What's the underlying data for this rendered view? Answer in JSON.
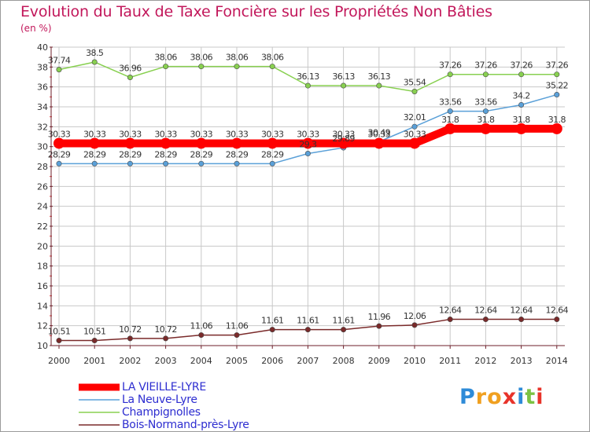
{
  "header": {
    "title": "Evolution du Taux de Taxe Foncière sur les Propriétés Non Bâties",
    "subtitle": "(en %)"
  },
  "logo": {
    "letters": [
      "P",
      "r",
      "o",
      "x",
      "i",
      "t",
      "i"
    ],
    "colors": [
      "#2e8bd8",
      "#f0a020",
      "#f0a020",
      "#e8332a",
      "#2e8bd8",
      "#7cc243",
      "#e8332a"
    ]
  },
  "colors": {
    "title": "#c2185b",
    "legend_text": "#2d2dd0",
    "axis": "#6d1f2a",
    "grid": "#c8c8c8"
  },
  "chart_data": {
    "type": "line",
    "title": "Evolution du Taux de Taxe Foncière sur les Propriétés Non Bâties",
    "ylabel": "(en %)",
    "xlabel": "",
    "x": [
      "2000",
      "2001",
      "2002",
      "2003",
      "2004",
      "2005",
      "2006",
      "2007",
      "2008",
      "2009",
      "2010",
      "2011",
      "2012",
      "2013",
      "2014"
    ],
    "ylim": [
      10,
      40
    ],
    "yticks": [
      "10",
      "12",
      "14",
      "16",
      "18",
      "20",
      "22",
      "24",
      "26",
      "28",
      "30",
      "32",
      "34",
      "36",
      "38",
      "40"
    ],
    "grid": true,
    "legend_position": "bottom-left",
    "series": [
      {
        "name": "LA VIEILLE-LYRE",
        "color": "#ff0000",
        "values": [
          30.33,
          30.33,
          30.33,
          30.33,
          30.33,
          30.33,
          30.33,
          30.33,
          30.33,
          30.33,
          30.33,
          31.8,
          31.8,
          31.8,
          31.8
        ],
        "labels": [
          "30.33",
          "30.33",
          "30.33",
          "30.33",
          "30.33",
          "30.33",
          "30.33",
          "30.33",
          "30.33",
          "30.33",
          "30.33",
          "31.8",
          "31.8",
          "31.8",
          "31.8"
        ]
      },
      {
        "name": "La Neuve-Lyre",
        "color": "#5aa0d8",
        "values": [
          28.29,
          28.29,
          28.29,
          28.29,
          28.29,
          28.29,
          28.29,
          29.3,
          29.89,
          30.49,
          32.01,
          33.56,
          33.56,
          34.2,
          35.22
        ],
        "labels": [
          "28.29",
          "28.29",
          "28.29",
          "28.29",
          "28.29",
          "28.29",
          "28.29",
          "29.3",
          "29.89",
          "30.49",
          "32.01",
          "33.56",
          "33.56",
          "34.2",
          "35.22"
        ]
      },
      {
        "name": "Champignolles",
        "color": "#88d050",
        "values": [
          37.74,
          38.5,
          36.96,
          38.06,
          38.06,
          38.06,
          38.06,
          36.13,
          36.13,
          36.13,
          35.54,
          37.26,
          37.26,
          37.26,
          37.26
        ],
        "labels": [
          "37.74",
          "38.5",
          "36.96",
          "38.06",
          "38.06",
          "38.06",
          "38.06",
          "36.13",
          "36.13",
          "36.13",
          "35.54",
          "37.26",
          "37.26",
          "37.26",
          "37.26"
        ]
      },
      {
        "name": "Bois-Normand-près-Lyre",
        "color": "#7a2a2a",
        "values": [
          10.51,
          10.51,
          10.72,
          10.72,
          11.06,
          11.06,
          11.61,
          11.61,
          11.61,
          11.96,
          12.06,
          12.64,
          12.64,
          12.64,
          12.64
        ],
        "labels": [
          "10.51",
          "10.51",
          "10.72",
          "10.72",
          "11.06",
          "11.06",
          "11.61",
          "11.61",
          "11.61",
          "11.96",
          "12.06",
          "12.64",
          "12.64",
          "12.64",
          "12.64"
        ]
      }
    ]
  }
}
